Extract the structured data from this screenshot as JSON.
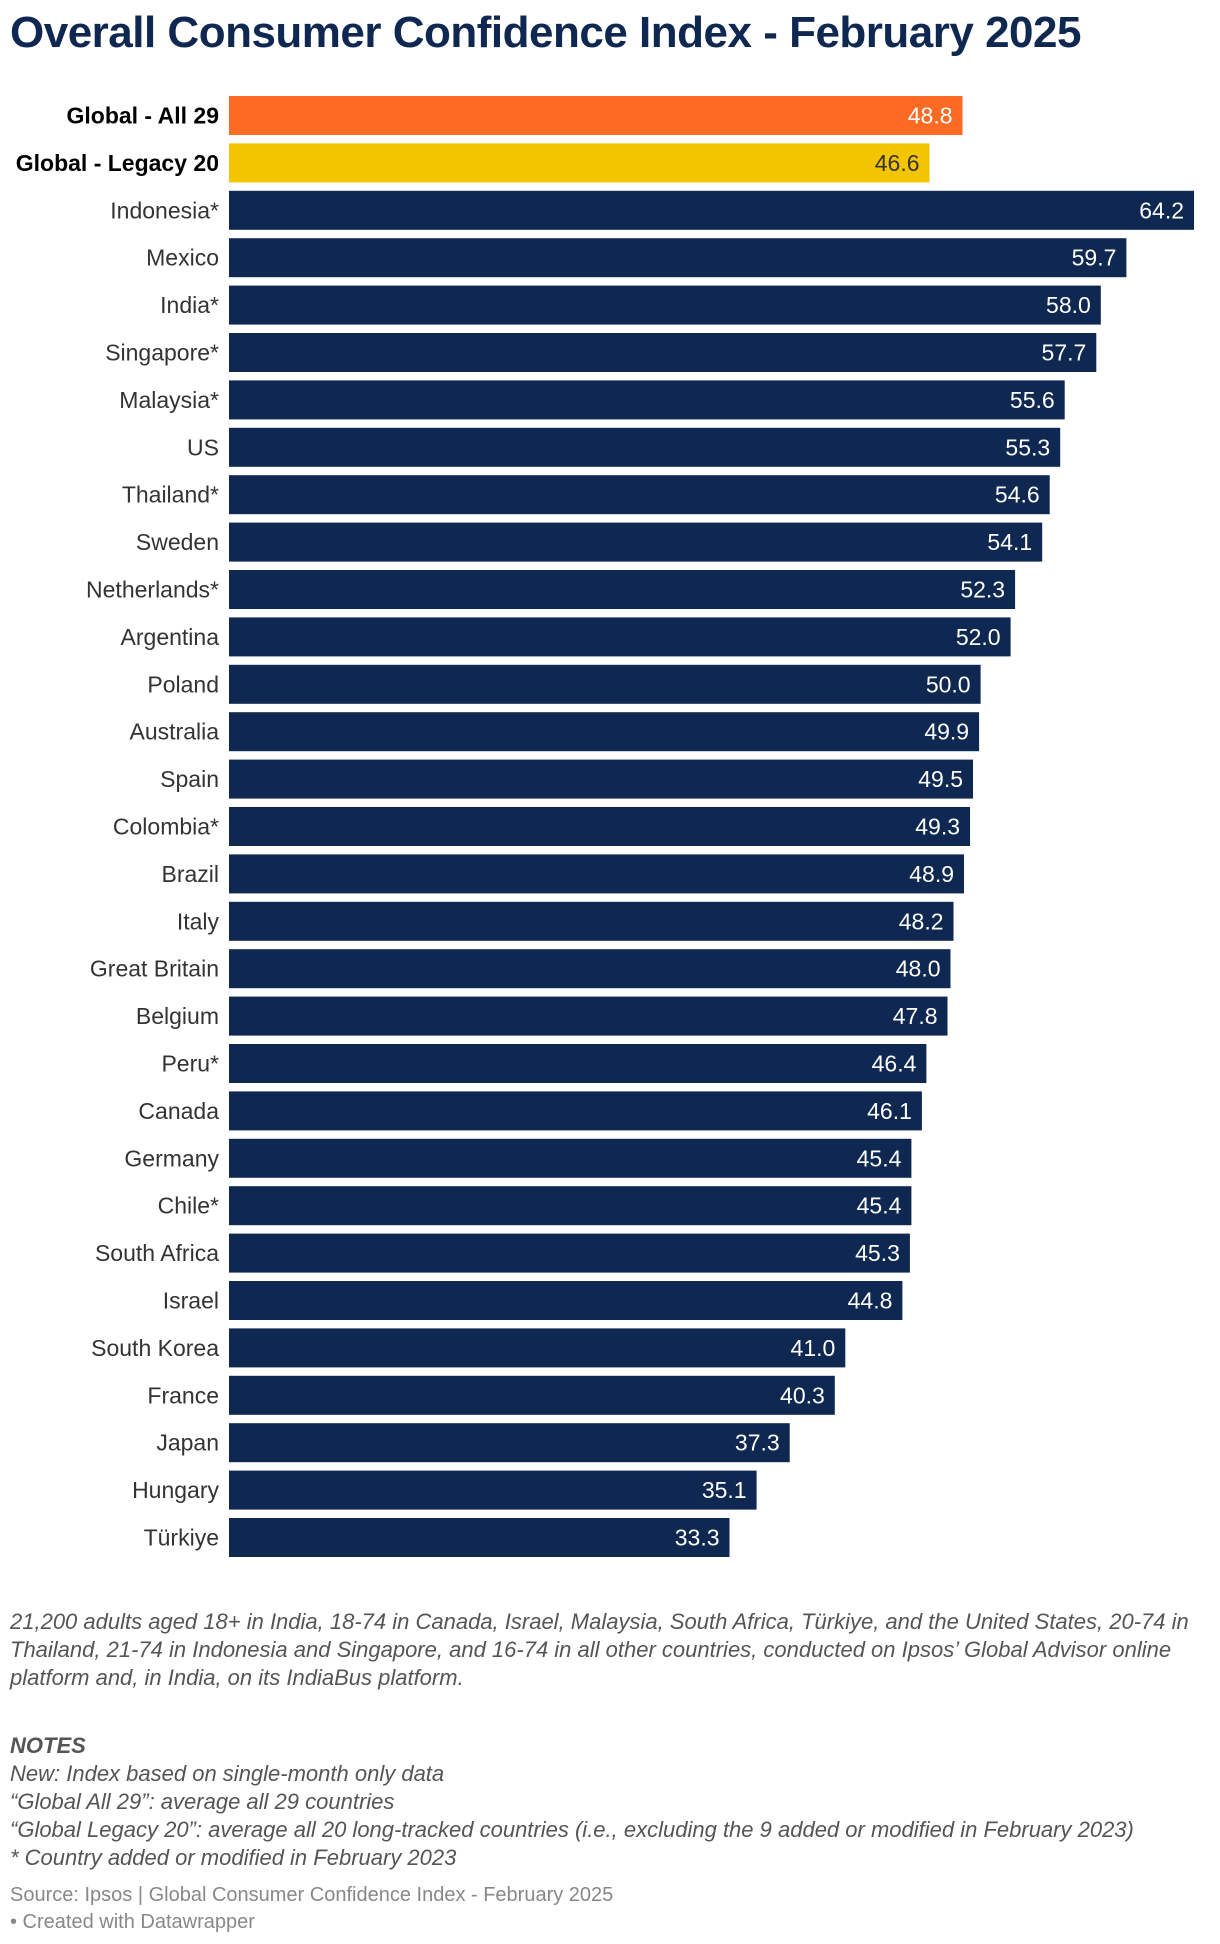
{
  "title": "Overall Consumer Confidence Index - February 2025",
  "chart_data": {
    "type": "bar",
    "orientation": "horizontal",
    "title": "Overall Consumer Confidence Index - February 2025",
    "xlim": [
      0,
      64.2
    ],
    "categories": [
      "Global - All 29",
      "Global - Legacy 20",
      "Indonesia*",
      "Mexico",
      "India*",
      "Singapore*",
      "Malaysia*",
      "US",
      "Thailand*",
      "Sweden",
      "Netherlands*",
      "Argentina",
      "Poland",
      "Australia",
      "Spain",
      "Colombia*",
      "Brazil",
      "Italy",
      "Great Britain",
      "Belgium",
      "Peru*",
      "Canada",
      "Germany",
      "Chile*",
      "South Africa",
      "Israel",
      "South Korea",
      "France",
      "Japan",
      "Hungary",
      "Türkiye"
    ],
    "values": [
      48.8,
      46.6,
      64.2,
      59.7,
      58.0,
      57.7,
      55.6,
      55.3,
      54.6,
      54.1,
      52.3,
      52.0,
      50.0,
      49.9,
      49.5,
      49.3,
      48.9,
      48.2,
      48.0,
      47.8,
      46.4,
      46.1,
      45.4,
      45.4,
      45.3,
      44.8,
      41.0,
      40.3,
      37.3,
      35.1,
      33.3
    ],
    "labels": [
      "48.8",
      "46.6",
      "64.2",
      "59.7",
      "58.0",
      "57.7",
      "55.6",
      "55.3",
      "54.6",
      "54.1",
      "52.3",
      "52.0",
      "50.0",
      "49.9",
      "49.5",
      "49.3",
      "48.9",
      "48.2",
      "48.0",
      "47.8",
      "46.4",
      "46.1",
      "45.4",
      "45.4",
      "45.3",
      "44.8",
      "41.0",
      "40.3",
      "37.3",
      "35.1",
      "33.3"
    ],
    "highlighted": [
      0,
      1
    ],
    "colors": [
      "#fd6a23",
      "#f2c500",
      "#0f2851",
      "#0f2851",
      "#0f2851",
      "#0f2851",
      "#0f2851",
      "#0f2851",
      "#0f2851",
      "#0f2851",
      "#0f2851",
      "#0f2851",
      "#0f2851",
      "#0f2851",
      "#0f2851",
      "#0f2851",
      "#0f2851",
      "#0f2851",
      "#0f2851",
      "#0f2851",
      "#0f2851",
      "#0f2851",
      "#0f2851",
      "#0f2851",
      "#0f2851",
      "#0f2851",
      "#0f2851",
      "#0f2851",
      "#0f2851",
      "#0f2851",
      "#0f2851"
    ],
    "label_colors": [
      "#ffffff",
      "#333333",
      "#ffffff",
      "#ffffff",
      "#ffffff",
      "#ffffff",
      "#ffffff",
      "#ffffff",
      "#ffffff",
      "#ffffff",
      "#ffffff",
      "#ffffff",
      "#ffffff",
      "#ffffff",
      "#ffffff",
      "#ffffff",
      "#ffffff",
      "#ffffff",
      "#ffffff",
      "#ffffff",
      "#ffffff",
      "#ffffff",
      "#ffffff",
      "#ffffff",
      "#ffffff",
      "#ffffff",
      "#ffffff",
      "#ffffff",
      "#ffffff",
      "#ffffff",
      "#ffffff"
    ]
  },
  "footer": {
    "methodology": "21,200 adults aged 18+ in India, 18-74 in Canada, Israel, Malaysia, South Africa, Türkiye, and the United States, 20-74 in Thailand, 21-74 in Indonesia and Singapore, and 16-74 in all other countries, conducted on Ipsos’ Global Advisor online platform and, in India, on its IndiaBus platform.",
    "notes_heading": "NOTES",
    "notes": [
      "New: Index based on single-month only data",
      "“Global All 29”: average all 29 countries",
      "“Global Legacy 20”: average all 20 long-tracked countries (i.e., excluding the 9 added or modified in February 2023)",
      "* Country added or modified in February 2023"
    ],
    "source": "Source: Ipsos | Global Consumer Confidence Index - February 2025",
    "credit": "• Created with Datawrapper"
  }
}
